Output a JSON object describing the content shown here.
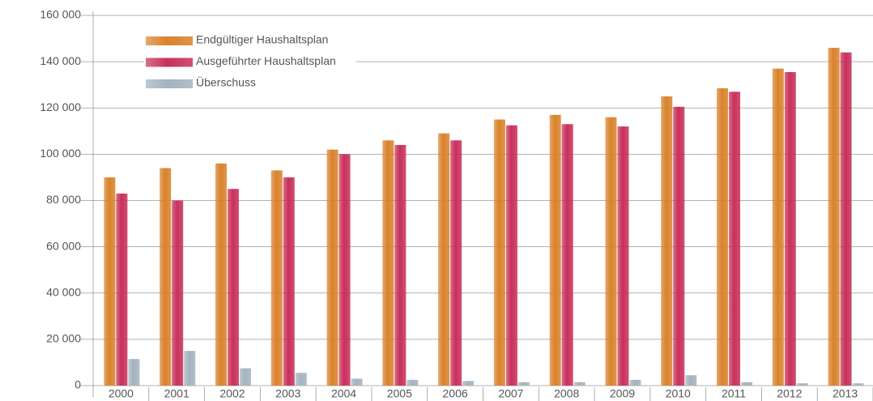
{
  "chart_data": {
    "type": "bar",
    "categories": [
      "2000",
      "2001",
      "2002",
      "2003",
      "2004",
      "2005",
      "2006",
      "2007",
      "2008",
      "2009",
      "2010",
      "2011",
      "2012",
      "2013"
    ],
    "series": [
      {
        "name": "Endgültiger Haushaltsplan",
        "color": "#d9822b",
        "values": [
          90000,
          94000,
          96000,
          93000,
          102000,
          106000,
          109000,
          115000,
          117000,
          116000,
          125000,
          128500,
          137000,
          146000
        ]
      },
      {
        "name": "Ausgeführter Haushaltsplan",
        "color": "#c8305a",
        "values": [
          83000,
          80000,
          85000,
          90000,
          100000,
          104000,
          106000,
          112500,
          113000,
          112000,
          120500,
          127000,
          135500,
          144000
        ]
      },
      {
        "name": "Überschuss",
        "color": "#a3b3bf",
        "values": [
          11500,
          15000,
          7500,
          5500,
          3000,
          2500,
          2000,
          1500,
          1500,
          2500,
          4500,
          1500,
          1000,
          1000
        ]
      }
    ],
    "ylim": [
      0,
      160000
    ],
    "yticks": [
      0,
      {
        "value": 20000,
        "label": "20 000"
      },
      {
        "value": 40000,
        "label": "40 000"
      },
      {
        "value": 60000,
        "label": "60 000"
      },
      {
        "value": 80000,
        "label": "80 000"
      },
      {
        "value": 100000,
        "label": "100 000"
      },
      {
        "value": 120000,
        "label": "120 000"
      },
      {
        "value": 140000,
        "label": "140 000"
      },
      {
        "value": 160000,
        "label": "160 000"
      }
    ],
    "grid": true,
    "legend": "top-left"
  }
}
